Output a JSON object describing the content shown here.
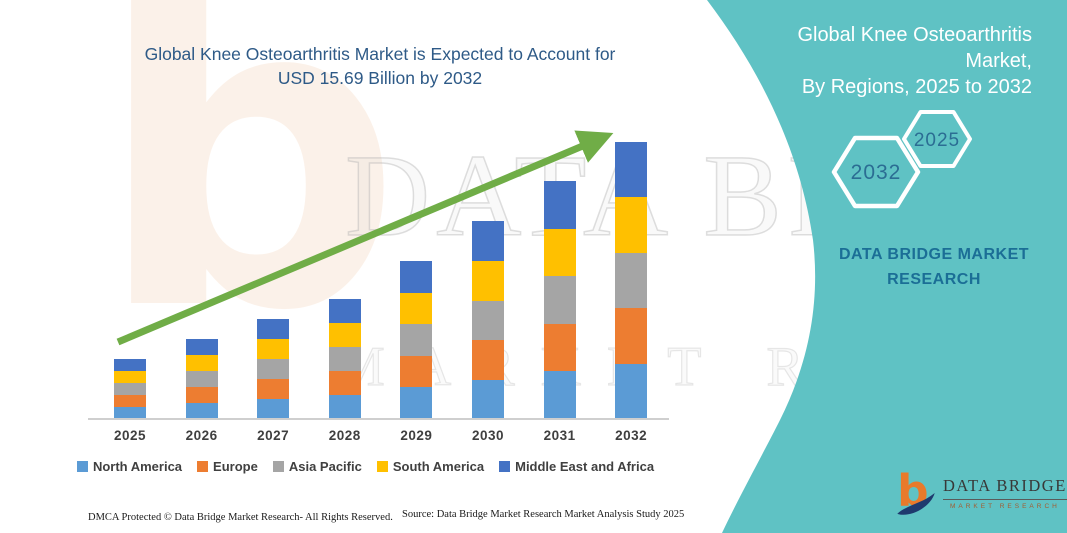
{
  "main_title": {
    "line1": "Global Knee Osteoarthritis Market is Expected to Account for",
    "line2": "USD 15.69 Billion by 2032"
  },
  "chart_data": {
    "type": "bar",
    "stacked": true,
    "title": "Global Knee Osteoarthritis Market is Expected to Account for USD 15.69 Billion by 2032",
    "unit": "USD Billion",
    "categories": [
      "2025",
      "2026",
      "2027",
      "2028",
      "2029",
      "2030",
      "2031",
      "2032"
    ],
    "series": [
      {
        "name": "North America",
        "color": "#5B9BD5",
        "values": [
          0.68,
          0.91,
          1.13,
          1.36,
          1.79,
          2.24,
          2.7,
          3.14
        ]
      },
      {
        "name": "Europe",
        "color": "#ED7D31",
        "values": [
          0.68,
          0.9,
          1.13,
          1.36,
          1.79,
          2.24,
          2.69,
          3.14
        ]
      },
      {
        "name": "Asia Pacific",
        "color": "#A5A5A5",
        "values": [
          0.68,
          0.91,
          1.13,
          1.36,
          1.79,
          2.24,
          2.7,
          3.14
        ]
      },
      {
        "name": "South America",
        "color": "#FFC000",
        "values": [
          0.68,
          0.9,
          1.13,
          1.36,
          1.79,
          2.25,
          2.69,
          3.14
        ]
      },
      {
        "name": "Middle East and Africa",
        "color": "#4472C4",
        "values": [
          0.68,
          0.91,
          1.14,
          1.36,
          1.79,
          2.24,
          2.7,
          3.13
        ]
      }
    ],
    "totals": [
      3.4,
      4.53,
      5.66,
      6.8,
      8.95,
      11.21,
      13.48,
      15.69
    ],
    "ylim": [
      0,
      15.69
    ],
    "grid": false,
    "axis_labels_shown": false,
    "legend_position": "bottom",
    "arrow_color": "#70AD47",
    "annotations": [
      "green upward trend arrow from 2025 to 2032"
    ]
  },
  "watermarks": {
    "brand_glyph": "b",
    "line1": "DATA BRIDGE",
    "line2": "MARKET RESEARCH"
  },
  "panel": {
    "bg_color": "#5FC2C4",
    "title_line1": "Global Knee Osteoarthritis Market,",
    "title_line2": "By Regions, 2025 to 2032",
    "hexagon_back_label": "2032",
    "hexagon_front_label": "2025",
    "brand_line1": "DATA BRIDGE MARKET",
    "brand_line2": "RESEARCH"
  },
  "logo": {
    "name": "DATA BRIDGE",
    "tagline": "MARKET RESEARCH"
  },
  "footer": {
    "dmca": "DMCA Protected © Data Bridge Market Research-  All Rights Reserved.",
    "source": "Source: Data Bridge Market Research  Market Analysis Study 2025"
  }
}
